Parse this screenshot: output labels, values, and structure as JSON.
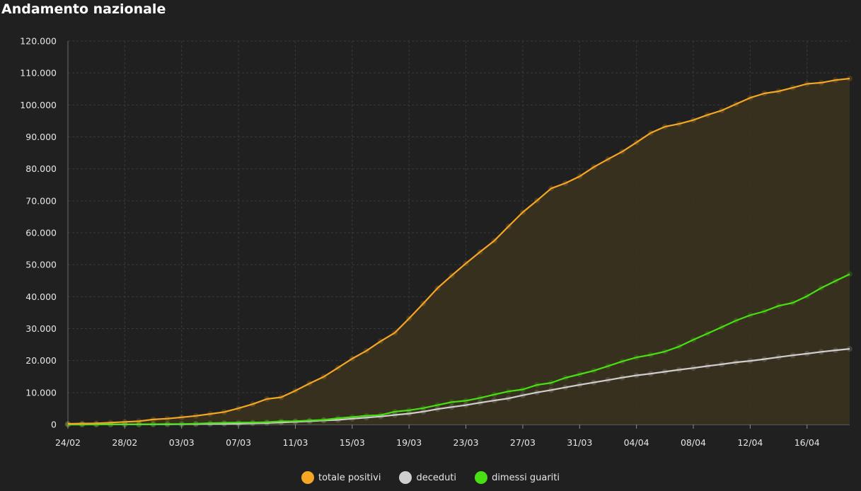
{
  "page": {
    "title": "Andamento nazionale"
  },
  "chart_data": {
    "type": "area",
    "title": "Andamento nazionale",
    "xlabel": "",
    "ylabel": "",
    "ylim": [
      0,
      120000
    ],
    "yticks": [
      0,
      10000,
      20000,
      30000,
      40000,
      50000,
      60000,
      70000,
      80000,
      90000,
      100000,
      110000,
      120000
    ],
    "ytick_labels": [
      "0",
      "10.000",
      "20.000",
      "30.000",
      "40.000",
      "50.000",
      "60.000",
      "70.000",
      "80.000",
      "90.000",
      "100.000",
      "110.000",
      "120.000"
    ],
    "x": [
      "24/02",
      "25/02",
      "26/02",
      "27/02",
      "28/02",
      "29/02",
      "01/03",
      "02/03",
      "03/03",
      "04/03",
      "05/03",
      "06/03",
      "07/03",
      "08/03",
      "09/03",
      "10/03",
      "11/03",
      "12/03",
      "13/03",
      "14/03",
      "15/03",
      "16/03",
      "17/03",
      "18/03",
      "19/03",
      "20/03",
      "21/03",
      "22/03",
      "23/03",
      "24/03",
      "25/03",
      "26/03",
      "27/03",
      "28/03",
      "29/03",
      "30/03",
      "31/03",
      "01/04",
      "02/04",
      "03/04",
      "04/04",
      "05/04",
      "06/04",
      "07/04",
      "08/04",
      "09/04",
      "10/04",
      "11/04",
      "12/04",
      "13/04",
      "14/04",
      "15/04",
      "16/04",
      "17/04",
      "18/04",
      "19/04"
    ],
    "xtick_labels": [
      "24/02",
      "28/02",
      "03/03",
      "07/03",
      "11/03",
      "15/03",
      "19/03",
      "23/03",
      "27/03",
      "31/03",
      "04/04",
      "08/04",
      "12/04",
      "16/04"
    ],
    "grid": true,
    "legend_position": "bottom-center",
    "series": [
      {
        "name": "totale positivi",
        "color": "#f5a623",
        "fill": "#3a3120",
        "filled": true,
        "values": [
          221,
          311,
          385,
          588,
          821,
          1049,
          1577,
          1835,
          2263,
          2706,
          3296,
          3916,
          5061,
          6387,
          7985,
          8514,
          10590,
          12839,
          14955,
          17750,
          20603,
          23073,
          26062,
          28710,
          33190,
          37860,
          42681,
          46638,
          50418,
          54030,
          57521,
          62013,
          66414,
          70065,
          73880,
          75528,
          77635,
          80572,
          83049,
          85388,
          88274,
          91246,
          93187,
          94067,
          95262,
          96877,
          98273,
          100269,
          102253,
          103616,
          104291,
          105418,
          106607,
          106962,
          107771,
          108257
        ]
      },
      {
        "name": "deceduti",
        "color": "#cfcfcf",
        "filled": false,
        "values": [
          7,
          10,
          12,
          17,
          21,
          29,
          34,
          52,
          79,
          107,
          148,
          197,
          233,
          366,
          463,
          631,
          827,
          1016,
          1266,
          1441,
          1809,
          2158,
          2503,
          2978,
          3405,
          4032,
          4825,
          5476,
          6077,
          6820,
          7503,
          8165,
          9134,
          10023,
          10779,
          11591,
          12428,
          13155,
          13915,
          14681,
          15362,
          15887,
          16523,
          17127,
          17669,
          18279,
          18849,
          19468,
          19899,
          20465,
          21067,
          21645,
          22170,
          22745,
          23227,
          23660
        ]
      },
      {
        "name": "dimessi guariti",
        "color": "#46e013",
        "filled": false,
        "values": [
          1,
          1,
          3,
          45,
          46,
          50,
          83,
          149,
          160,
          276,
          414,
          523,
          589,
          622,
          724,
          1004,
          1045,
          1258,
          1439,
          1966,
          2335,
          2749,
          2941,
          4025,
          4440,
          5129,
          6072,
          7024,
          7432,
          8326,
          9362,
          10361,
          10950,
          12384,
          13030,
          14620,
          15729,
          16847,
          18278,
          19758,
          20996,
          21815,
          22837,
          24392,
          26491,
          28470,
          30455,
          32534,
          34211,
          35435,
          37130,
          38092,
          40164,
          42727,
          44927,
          47055
        ]
      }
    ]
  }
}
